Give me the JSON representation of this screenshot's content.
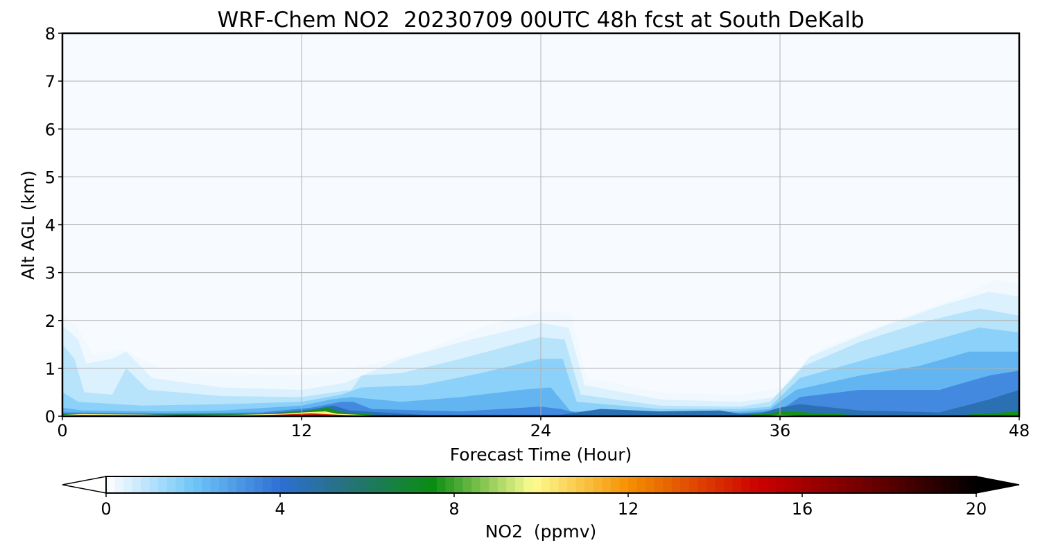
{
  "chart_data": {
    "type": "heatmap",
    "title": "WRF-Chem NO2  20230709 00UTC 48h fcst at South DeKalb",
    "xlabel": "Forecast Time (Hour)",
    "ylabel": "Alt AGL (km)",
    "xlim": [
      0,
      48
    ],
    "ylim": [
      0,
      8
    ],
    "xticks": [
      "0",
      "12",
      "24",
      "36",
      "48"
    ],
    "yticks": [
      "0",
      "1",
      "2",
      "3",
      "4",
      "5",
      "6",
      "7",
      "8"
    ],
    "grid": true,
    "colorbar": {
      "label": "NO2  (ppmv)",
      "range": [
        0,
        20
      ],
      "ticks": [
        "0",
        "4",
        "8",
        "12",
        "16",
        "20"
      ],
      "extend": "both",
      "stops": [
        {
          "v": 0,
          "c": "#ffffff"
        },
        {
          "v": 2,
          "c": "#6fc6f7"
        },
        {
          "v": 4,
          "c": "#2e6fd4"
        },
        {
          "v": 5.5,
          "c": "#26727e"
        },
        {
          "v": 7.5,
          "c": "#0a8c12"
        },
        {
          "v": 9.8,
          "c": "#fdfd90"
        },
        {
          "v": 12,
          "c": "#f59000"
        },
        {
          "v": 15,
          "c": "#cc0000"
        },
        {
          "v": 18,
          "c": "#5a0000"
        },
        {
          "v": 20,
          "c": "#000000"
        }
      ]
    },
    "layers": [
      {
        "level": 0.2,
        "points": [
          [
            0,
            2.1
          ],
          [
            0.7,
            1.9
          ],
          [
            1.5,
            1.3
          ],
          [
            3,
            1.4
          ],
          [
            5,
            1.0
          ],
          [
            8,
            0.9
          ],
          [
            12,
            0.85
          ],
          [
            14,
            0.95
          ],
          [
            18,
            1.35
          ],
          [
            21,
            1.85
          ],
          [
            24,
            2.2
          ],
          [
            25.5,
            2.15
          ],
          [
            26.3,
            0.8
          ],
          [
            30,
            0.5
          ],
          [
            34,
            0.45
          ],
          [
            36,
            0.6
          ],
          [
            38,
            1.4
          ],
          [
            42,
            2.05
          ],
          [
            45,
            2.5
          ],
          [
            46.8,
            2.85
          ],
          [
            48,
            2.75
          ]
        ]
      },
      {
        "level": 0.5,
        "points": [
          [
            0,
            1.9
          ],
          [
            0.8,
            1.6
          ],
          [
            1.2,
            1.1
          ],
          [
            2.5,
            1.2
          ],
          [
            3.2,
            1.35
          ],
          [
            4.5,
            0.8
          ],
          [
            8,
            0.6
          ],
          [
            12,
            0.55
          ],
          [
            14.2,
            0.7
          ],
          [
            17,
            1.2
          ],
          [
            20,
            1.55
          ],
          [
            24,
            1.95
          ],
          [
            25.4,
            1.85
          ],
          [
            26.2,
            0.65
          ],
          [
            30,
            0.35
          ],
          [
            34,
            0.3
          ],
          [
            35.8,
            0.4
          ],
          [
            37.5,
            1.25
          ],
          [
            41,
            1.85
          ],
          [
            44,
            2.3
          ],
          [
            46.5,
            2.6
          ],
          [
            48,
            2.5
          ]
        ]
      },
      {
        "level": 1.0,
        "points": [
          [
            0,
            1.5
          ],
          [
            0.6,
            1.2
          ],
          [
            1.1,
            0.5
          ],
          [
            2.5,
            0.45
          ],
          [
            3.2,
            1.0
          ],
          [
            4.3,
            0.55
          ],
          [
            8,
            0.42
          ],
          [
            12,
            0.4
          ],
          [
            14.5,
            0.55
          ],
          [
            15,
            0.85
          ],
          [
            17,
            0.9
          ],
          [
            20,
            1.2
          ],
          [
            24,
            1.65
          ],
          [
            25.2,
            1.6
          ],
          [
            26,
            0.45
          ],
          [
            30,
            0.22
          ],
          [
            34,
            0.2
          ],
          [
            35.5,
            0.3
          ],
          [
            37.2,
            1.05
          ],
          [
            40,
            1.55
          ],
          [
            43,
            1.95
          ],
          [
            46,
            2.25
          ],
          [
            48,
            2.1
          ]
        ]
      },
      {
        "level": 1.6,
        "points": [
          [
            0,
            0.5
          ],
          [
            0.8,
            0.3
          ],
          [
            4,
            0.22
          ],
          [
            8,
            0.25
          ],
          [
            12,
            0.3
          ],
          [
            14,
            0.45
          ],
          [
            15,
            0.6
          ],
          [
            18,
            0.65
          ],
          [
            21,
            0.9
          ],
          [
            24,
            1.2
          ],
          [
            25.1,
            1.2
          ],
          [
            25.8,
            0.3
          ],
          [
            30,
            0.15
          ],
          [
            34,
            0.15
          ],
          [
            35.5,
            0.2
          ],
          [
            37,
            0.8
          ],
          [
            40,
            1.15
          ],
          [
            43,
            1.5
          ],
          [
            46,
            1.85
          ],
          [
            48,
            1.75
          ]
        ]
      },
      {
        "level": 2.4,
        "points": [
          [
            0,
            0.18
          ],
          [
            1,
            0.12
          ],
          [
            5,
            0.1
          ],
          [
            8,
            0.12
          ],
          [
            12,
            0.22
          ],
          [
            13.5,
            0.35
          ],
          [
            14.5,
            0.4
          ],
          [
            17,
            0.3
          ],
          [
            20,
            0.4
          ],
          [
            23,
            0.55
          ],
          [
            24.5,
            0.6
          ],
          [
            25.5,
            0.1
          ],
          [
            30,
            0.08
          ],
          [
            34,
            0.1
          ],
          [
            35.5,
            0.15
          ],
          [
            36.8,
            0.55
          ],
          [
            40,
            0.85
          ],
          [
            43,
            1.05
          ],
          [
            45.5,
            1.35
          ],
          [
            48,
            1.35
          ]
        ]
      },
      {
        "level": 3.4,
        "points": [
          [
            0,
            0.08
          ],
          [
            5,
            0.06
          ],
          [
            10,
            0.08
          ],
          [
            12.5,
            0.18
          ],
          [
            14,
            0.3
          ],
          [
            14.6,
            0.3
          ],
          [
            15.5,
            0.15
          ],
          [
            20,
            0.1
          ],
          [
            24,
            0.2
          ],
          [
            25,
            0.15
          ],
          [
            26,
            0.05
          ],
          [
            30,
            0.05
          ],
          [
            34,
            0.06
          ],
          [
            36,
            0.12
          ],
          [
            37,
            0.4
          ],
          [
            40,
            0.55
          ],
          [
            44,
            0.55
          ],
          [
            46.5,
            0.85
          ],
          [
            48,
            0.95
          ]
        ]
      },
      {
        "level": 4.6,
        "points": [
          [
            0,
            0.05
          ],
          [
            5,
            0.04
          ],
          [
            10,
            0.05
          ],
          [
            12.5,
            0.14
          ],
          [
            13.6,
            0.22
          ],
          [
            14.4,
            0.12
          ],
          [
            18,
            0.03
          ],
          [
            25,
            0.03
          ],
          [
            27,
            0.15
          ],
          [
            30,
            0.1
          ],
          [
            33,
            0.12
          ],
          [
            34,
            0.05
          ],
          [
            35,
            0.06
          ],
          [
            36,
            0.18
          ],
          [
            37,
            0.25
          ],
          [
            40,
            0.12
          ],
          [
            44,
            0.08
          ],
          [
            46.5,
            0.35
          ],
          [
            48,
            0.55
          ]
        ]
      },
      {
        "level": 7.6,
        "points": [
          [
            0,
            0.04
          ],
          [
            5,
            0.035
          ],
          [
            10,
            0.04
          ],
          [
            12.2,
            0.11
          ],
          [
            13.3,
            0.18
          ],
          [
            14,
            0.08
          ],
          [
            16,
            0.02
          ],
          [
            34,
            0.02
          ],
          [
            35.5,
            0.06
          ],
          [
            36.2,
            0.11
          ],
          [
            37.2,
            0.08
          ],
          [
            40,
            0.02
          ],
          [
            45,
            0.02
          ],
          [
            46.8,
            0.07
          ],
          [
            48,
            0.1
          ]
        ]
      },
      {
        "level": 10.0,
        "points": [
          [
            0,
            0.025
          ],
          [
            1,
            0.045
          ],
          [
            4,
            0.035
          ],
          [
            6,
            0.02
          ],
          [
            9,
            0.03
          ],
          [
            11,
            0.05
          ],
          [
            12.3,
            0.085
          ],
          [
            13.2,
            0.1
          ],
          [
            13.8,
            0.05
          ],
          [
            16,
            0.01
          ],
          [
            35,
            0.01
          ],
          [
            36,
            0.03
          ],
          [
            37,
            0.02
          ],
          [
            46,
            0.01
          ],
          [
            48,
            0.02
          ]
        ]
      },
      {
        "level": 14.0,
        "points": [
          [
            0,
            0.012
          ],
          [
            1,
            0.025
          ],
          [
            5,
            0.018
          ],
          [
            9,
            0.012
          ],
          [
            11,
            0.035
          ],
          [
            12.5,
            0.06
          ],
          [
            13.4,
            0.04
          ],
          [
            15,
            0.005
          ],
          [
            48,
            0.005
          ]
        ]
      },
      {
        "level": 17.5,
        "points": [
          [
            0,
            0.006
          ],
          [
            9,
            0.006
          ],
          [
            11.5,
            0.022
          ],
          [
            12.8,
            0.035
          ],
          [
            13.6,
            0.012
          ],
          [
            15,
            0.003
          ],
          [
            48,
            0.003
          ]
        ]
      }
    ]
  }
}
